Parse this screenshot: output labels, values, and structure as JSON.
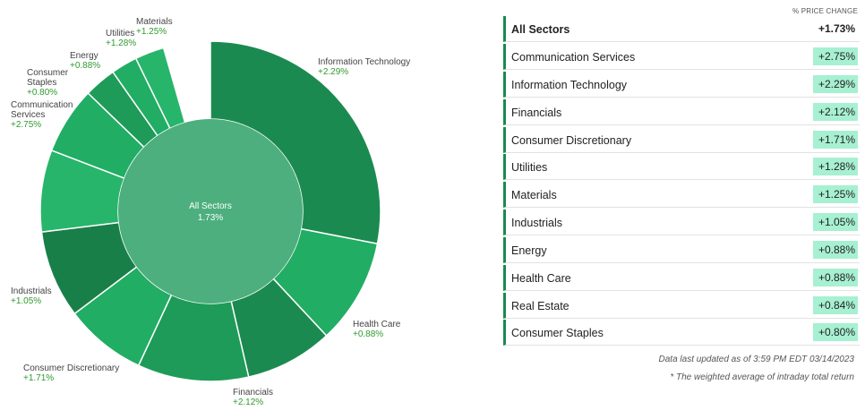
{
  "chart_data": {
    "type": "pie",
    "center": {
      "label": "All Sectors",
      "value": "1.73%"
    },
    "slices": [
      {
        "name": "Information Technology",
        "value": "+2.29%",
        "color": "#1b8a50"
      },
      {
        "name": "Health Care",
        "value": "+0.88%",
        "color": "#21ad64"
      },
      {
        "name": "Financials",
        "value": "+2.12%",
        "color": "#1b8a50"
      },
      {
        "name": "Consumer Discretionary",
        "value": "+1.71%",
        "color": "#1e9b58"
      },
      {
        "name": "Industrials",
        "value": "+1.05%",
        "color": "#21ad64"
      },
      {
        "name": "",
        "value": "",
        "color": "#197f49"
      },
      {
        "name": "Communication Services",
        "value": "+2.75%",
        "color": "#27b56b"
      },
      {
        "name": "Consumer Staples",
        "value": "+0.80%",
        "color": "#21ad64"
      },
      {
        "name": "Energy",
        "value": "+0.88%",
        "color": "#1e9b58"
      },
      {
        "name": "Utilities",
        "value": "+1.28%",
        "color": "#21ad64"
      },
      {
        "name": "Materials",
        "value": "+1.25%",
        "color": "#27b56b"
      }
    ]
  },
  "table": {
    "column_header": "% PRICE CHANGE",
    "total": {
      "name": "All Sectors",
      "value": "+1.73%"
    },
    "rows": [
      {
        "name": "Communication Services",
        "value": "+2.75%"
      },
      {
        "name": "Information Technology",
        "value": "+2.29%"
      },
      {
        "name": "Financials",
        "value": "+2.12%"
      },
      {
        "name": "Consumer Discretionary",
        "value": "+1.71%"
      },
      {
        "name": "Utilities",
        "value": "+1.28%"
      },
      {
        "name": "Materials",
        "value": "+1.25%"
      },
      {
        "name": "Industrials",
        "value": "+1.05%"
      },
      {
        "name": "Energy",
        "value": "+0.88%"
      },
      {
        "name": "Health Care",
        "value": "+0.88%"
      },
      {
        "name": "Real Estate",
        "value": "+0.84%"
      },
      {
        "name": "Consumer Staples",
        "value": "+0.80%"
      }
    ]
  },
  "footer": {
    "updated": "Data last updated as of 3:59 PM EDT 03/14/2023",
    "note": "* The weighted average of intraday total return"
  }
}
